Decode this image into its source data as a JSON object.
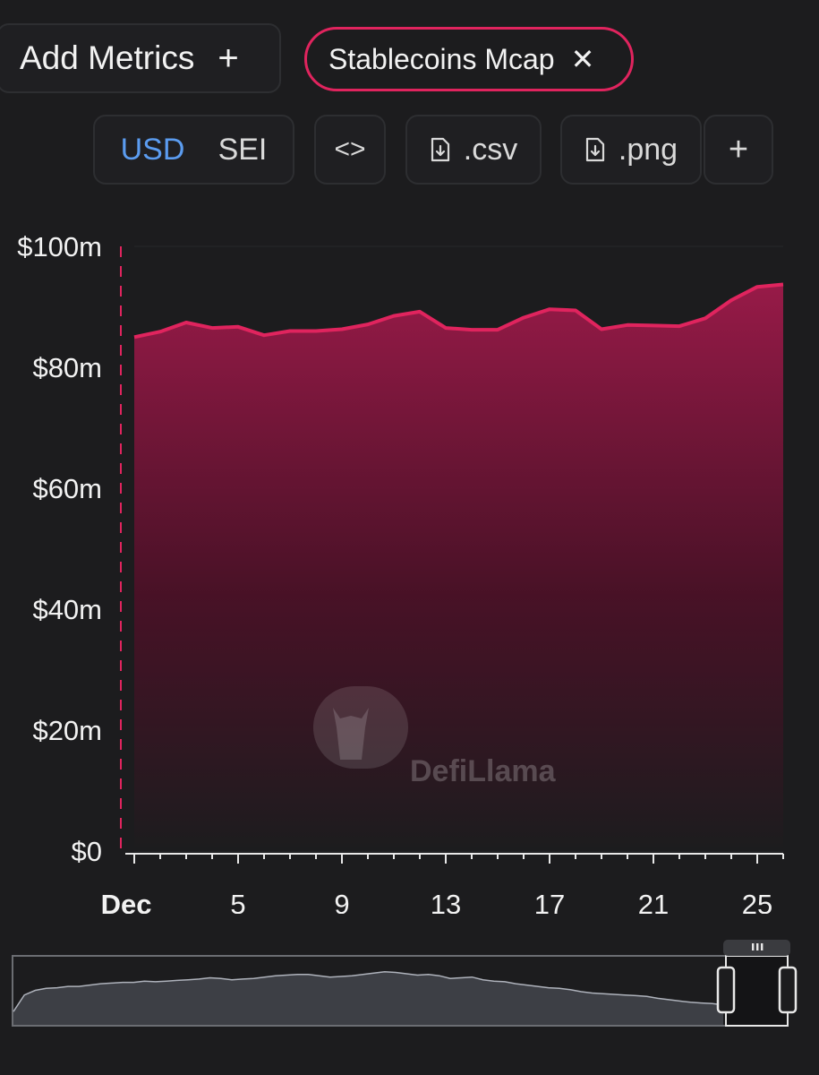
{
  "header": {
    "add_metrics_label": "Add Metrics",
    "add_metrics_icon": "plus-icon",
    "metric_chip_label": "Stablecoins Mcap",
    "metric_chip_icon": "close-icon"
  },
  "toolbar": {
    "currency_options": [
      "USD",
      "SEI"
    ],
    "active_currency": "USD",
    "embed_label": "<>",
    "csv_label": ".csv",
    "png_label": ".png",
    "more_label": "+"
  },
  "colors": {
    "accent": "#e0245e",
    "background": "#1c1c1e",
    "active_toggle": "#5b9cf0"
  },
  "watermark": "DefiLlama",
  "chart_data": {
    "type": "area",
    "series": [
      {
        "name": "Stablecoins Mcap",
        "color": "#e0245e",
        "values": [
          85.0,
          85.9,
          87.4,
          86.5,
          86.7,
          85.3,
          86.0,
          86.0,
          86.3,
          87.1,
          88.5,
          89.2,
          86.5,
          86.2,
          86.2,
          88.2,
          89.6,
          89.4,
          86.3,
          87.0,
          86.9,
          86.8,
          88.1,
          91.1,
          93.3,
          93.7
        ]
      }
    ],
    "x_start_day": 1,
    "x_end_day": 26,
    "x_ticks": [
      "Dec",
      "5",
      "9",
      "13",
      "17",
      "21",
      "25"
    ],
    "x_tick_days": [
      1,
      5,
      9,
      13,
      17,
      21,
      25
    ],
    "y_ticks": [
      "$100m",
      "$80m",
      "$60m",
      "$40m",
      "$20m",
      "$0"
    ],
    "y_tick_values": [
      100,
      80,
      60,
      40,
      20,
      0
    ],
    "ylim": [
      0,
      100
    ],
    "unit": "m",
    "grid": true,
    "overview": {
      "values": [
        20,
        45,
        52,
        55,
        56,
        58,
        58,
        60,
        62,
        63,
        64,
        64,
        66,
        65,
        66,
        67,
        68,
        69,
        71,
        70,
        68,
        69,
        70,
        72,
        74,
        75,
        76,
        76,
        74,
        72,
        73,
        74,
        76,
        78,
        80,
        79,
        77,
        75,
        76,
        74,
        70,
        71,
        72,
        68,
        66,
        65,
        62,
        60,
        58,
        56,
        55,
        53,
        50,
        48,
        47,
        46,
        45,
        44,
        43,
        40,
        38,
        36,
        34,
        33,
        32,
        30
      ]
    }
  }
}
